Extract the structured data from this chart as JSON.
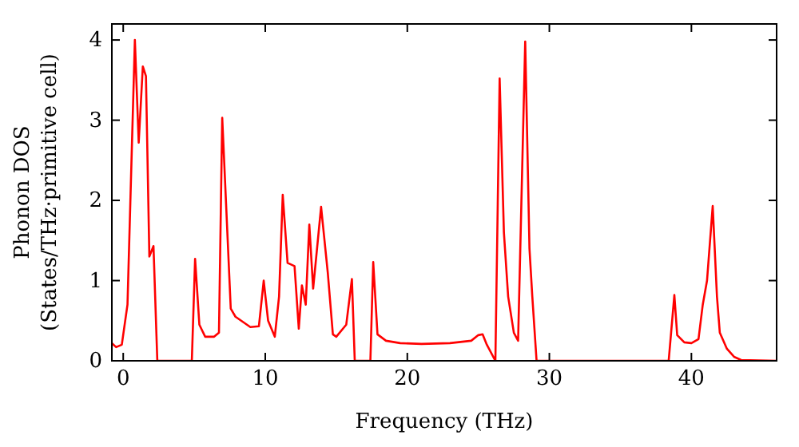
{
  "chart_data": {
    "type": "line",
    "xlabel": "Frequency (THz)",
    "ylabel": "Phonon DOS\n(States/THz·primitive cell)",
    "xlim": [
      -0.8,
      46
    ],
    "ylim": [
      0,
      4.2
    ],
    "xticks": [
      0,
      10,
      20,
      30,
      40
    ],
    "yticks": [
      0,
      1,
      2,
      3,
      4
    ],
    "grid": false,
    "marker": "none",
    "line_style": "solid",
    "series": [
      {
        "color": "#ff0000",
        "x": [
          -0.8,
          -0.5,
          -0.1,
          0.3,
          0.82,
          1.09,
          1.38,
          1.6,
          1.84,
          2.13,
          2.4,
          4.83,
          5.06,
          5.36,
          5.77,
          6.4,
          6.74,
          6.97,
          7.57,
          7.9,
          8.95,
          9.55,
          9.89,
          10.2,
          10.67,
          10.97,
          11.23,
          11.57,
          12.06,
          12.36,
          12.58,
          12.85,
          13.1,
          13.37,
          13.93,
          14.4,
          14.76,
          15.0,
          15.7,
          16.1,
          16.3,
          17.4,
          17.6,
          17.9,
          18.5,
          19.5,
          21,
          23,
          24.5,
          25.0,
          25.3,
          25.6,
          26.2,
          26.5,
          26.8,
          27.1,
          27.5,
          27.8,
          28.3,
          28.6,
          28.8,
          29.1,
          38.4,
          38.8,
          39.0,
          39.5,
          40.0,
          40.5,
          40.8,
          41.1,
          41.5,
          41.8,
          42.0,
          42.5,
          43.0,
          43.5,
          46
        ],
        "values": [
          0.22,
          0.17,
          0.2,
          0.7,
          4.0,
          2.72,
          3.67,
          3.55,
          1.3,
          1.43,
          0,
          0,
          1.27,
          0.45,
          0.3,
          0.3,
          0.35,
          3.03,
          0.65,
          0.55,
          0.42,
          0.43,
          1.0,
          0.5,
          0.3,
          0.8,
          2.07,
          1.22,
          1.18,
          0.4,
          0.94,
          0.7,
          1.7,
          0.9,
          1.92,
          1.1,
          0.33,
          0.3,
          0.45,
          1.02,
          0,
          0,
          1.23,
          0.33,
          0.25,
          0.22,
          0.21,
          0.22,
          0.25,
          0.32,
          0.33,
          0.2,
          0,
          3.52,
          1.6,
          0.8,
          0.35,
          0.25,
          3.98,
          1.4,
          0.8,
          0,
          0,
          0.82,
          0.32,
          0.23,
          0.22,
          0.27,
          0.7,
          1.0,
          1.93,
          0.8,
          0.35,
          0.15,
          0.05,
          0.01,
          0
        ]
      }
    ]
  }
}
